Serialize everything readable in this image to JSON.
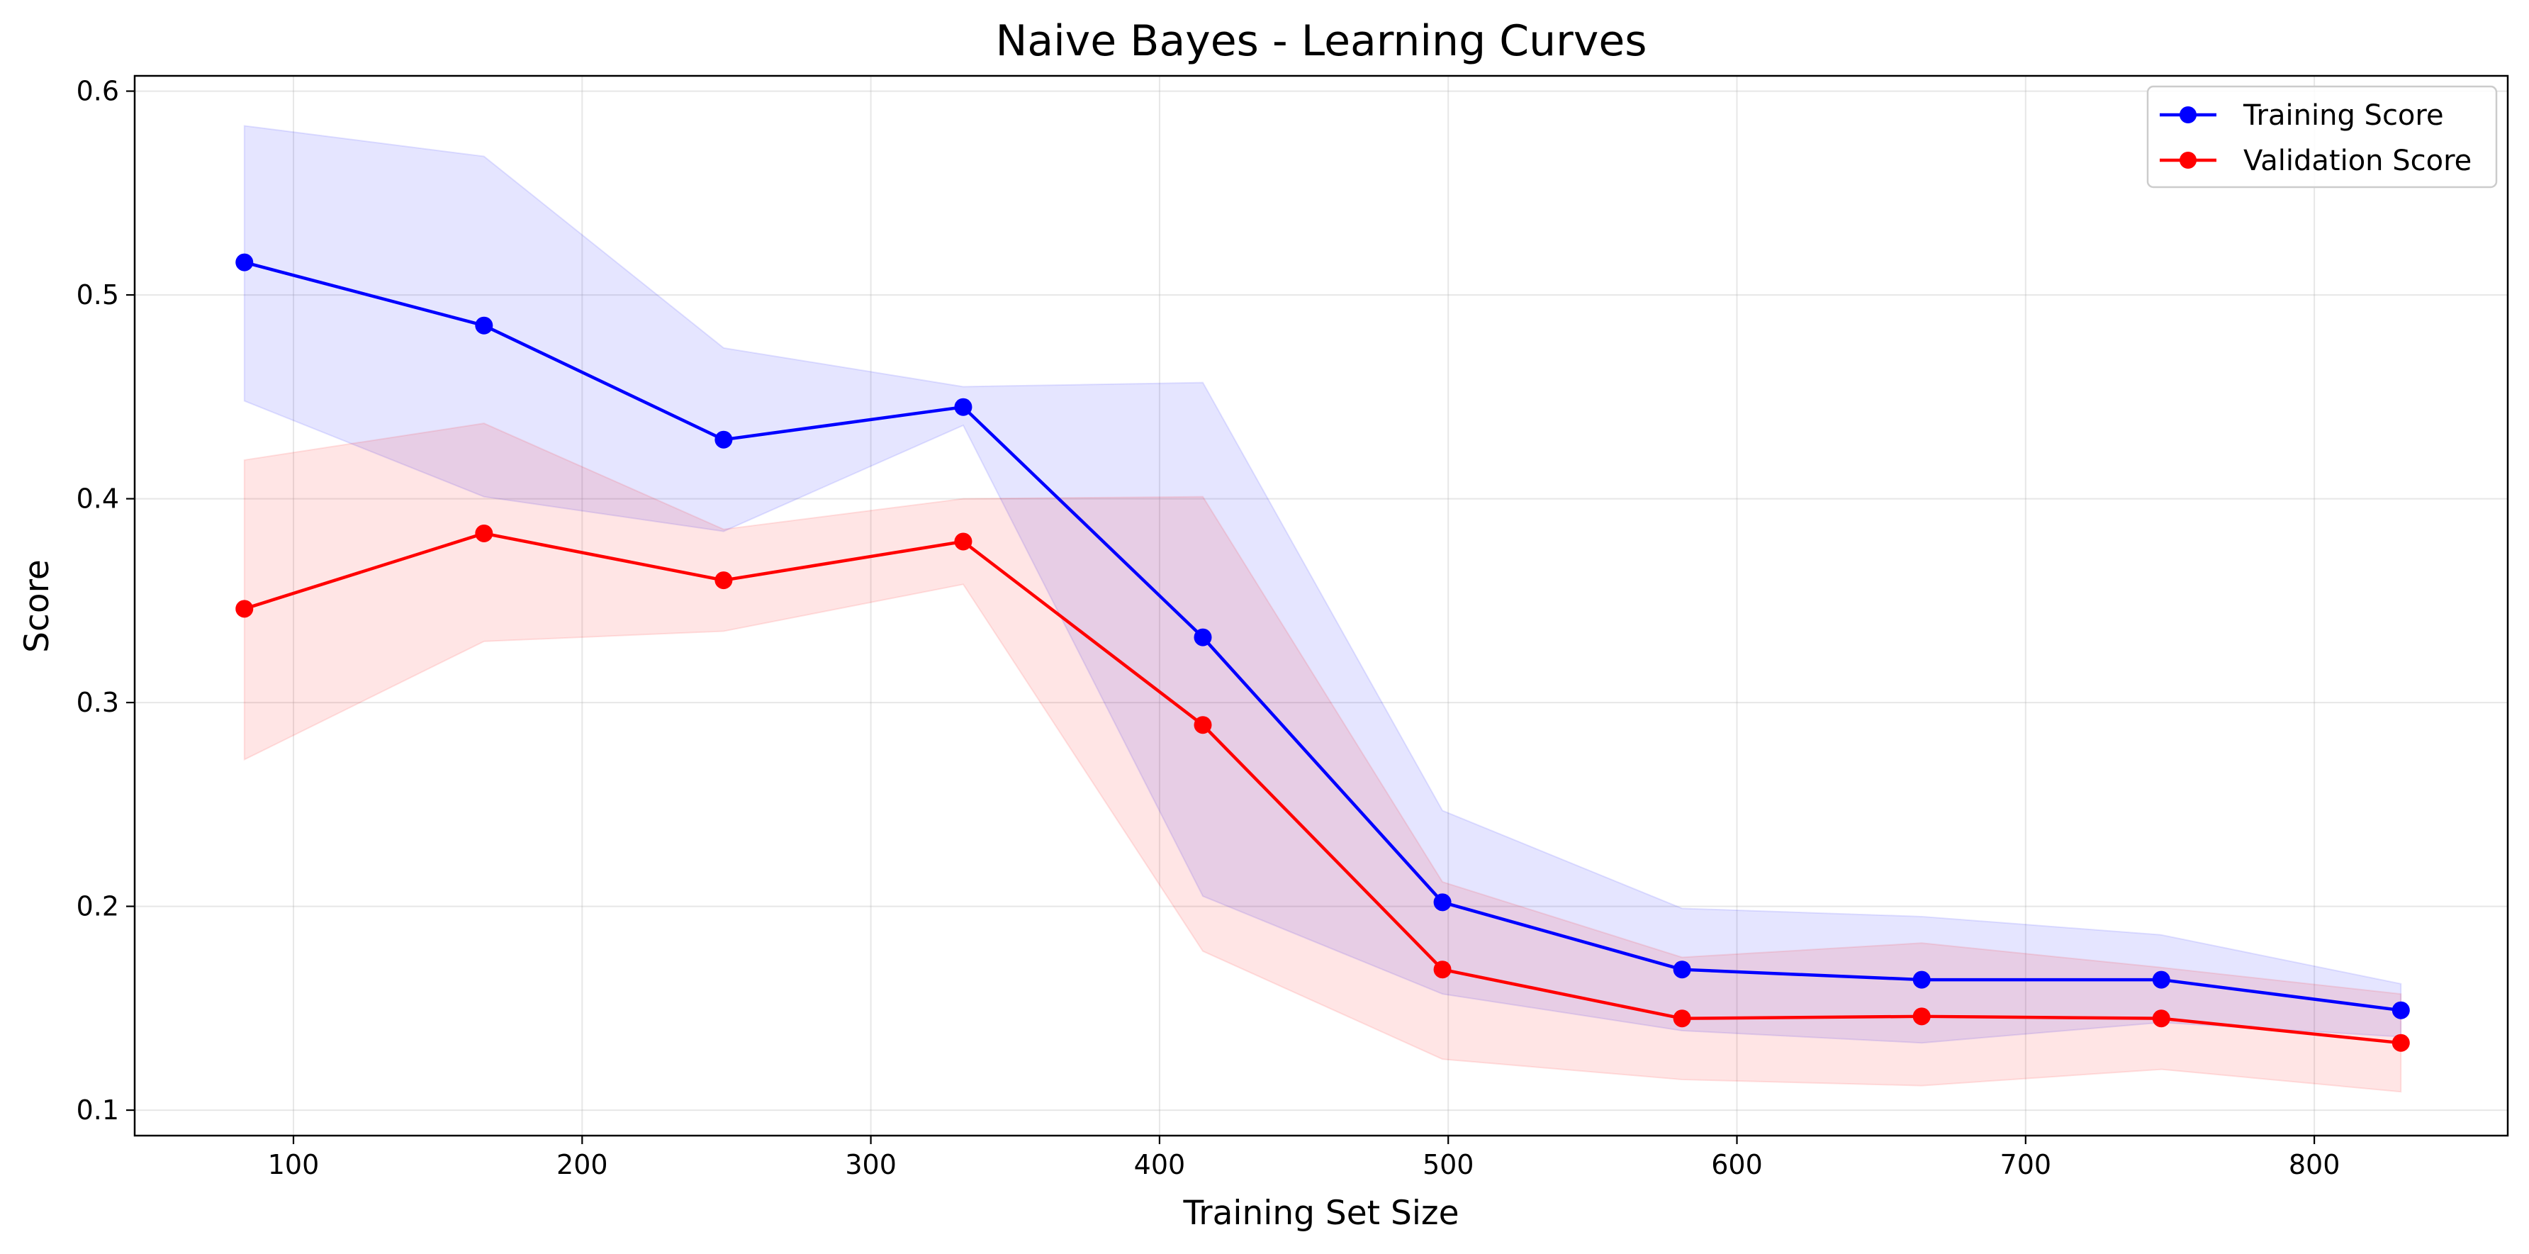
{
  "chart_data": {
    "type": "line",
    "title": "Naive Bayes - Learning Curves",
    "xlabel": "Training Set Size",
    "ylabel": "Score",
    "xlim": [
      45,
      867
    ],
    "ylim": [
      0.0875,
      0.6075
    ],
    "xticks": [
      100,
      200,
      300,
      400,
      500,
      600,
      700,
      800
    ],
    "yticks": [
      0.1,
      0.2,
      0.3,
      0.4,
      0.5,
      0.6
    ],
    "ytick_labels": [
      "0.1",
      "0.2",
      "0.3",
      "0.4",
      "0.5",
      "0.6"
    ],
    "grid": true,
    "legend_position": "top-right",
    "x": [
      83,
      166,
      249,
      332,
      415,
      498,
      581,
      664,
      747,
      830
    ],
    "series": [
      {
        "name": "Training Score",
        "color": "#0000ff",
        "band_color": "#0000ff",
        "values": [
          0.516,
          0.485,
          0.429,
          0.445,
          0.332,
          0.202,
          0.169,
          0.164,
          0.164,
          0.149
        ],
        "upper": [
          0.583,
          0.568,
          0.474,
          0.455,
          0.457,
          0.247,
          0.199,
          0.195,
          0.186,
          0.162
        ],
        "lower": [
          0.448,
          0.401,
          0.384,
          0.436,
          0.205,
          0.157,
          0.139,
          0.133,
          0.143,
          0.136
        ]
      },
      {
        "name": "Validation Score",
        "color": "#ff0000",
        "band_color": "#ff0000",
        "values": [
          0.346,
          0.383,
          0.36,
          0.379,
          0.289,
          0.169,
          0.145,
          0.146,
          0.145,
          0.133
        ],
        "upper": [
          0.419,
          0.437,
          0.385,
          0.4,
          0.401,
          0.212,
          0.175,
          0.182,
          0.17,
          0.157
        ],
        "lower": [
          0.272,
          0.33,
          0.335,
          0.358,
          0.178,
          0.125,
          0.115,
          0.112,
          0.12,
          0.109
        ]
      }
    ]
  }
}
